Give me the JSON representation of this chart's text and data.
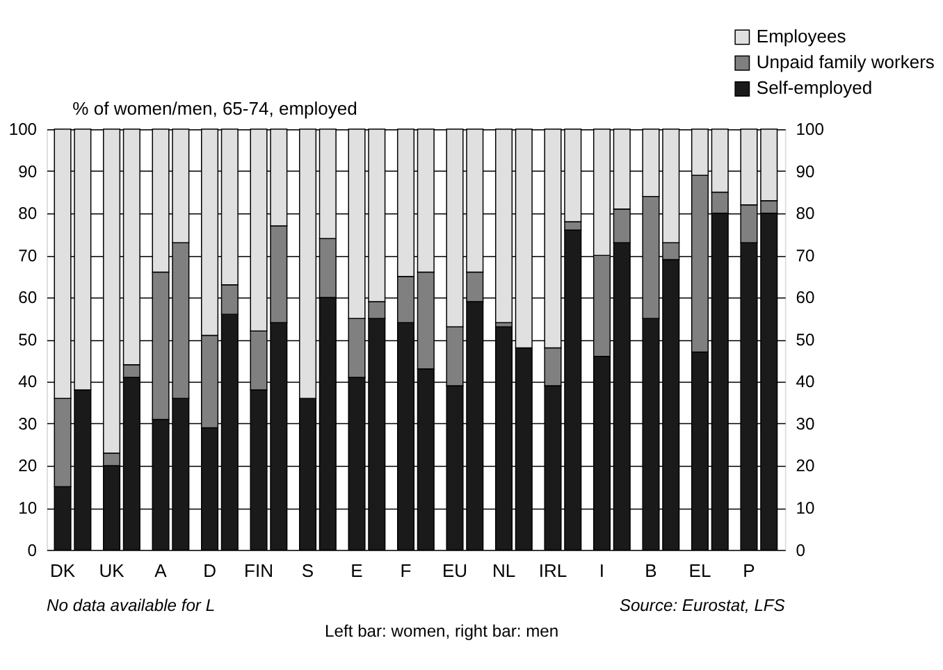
{
  "chart_data": {
    "type": "bar",
    "stacked": true,
    "ylabel": "% of women/men, 65-74, employed",
    "categories": [
      "DK",
      null,
      "UK",
      null,
      "A",
      null,
      "D",
      null,
      "FIN",
      null,
      "S",
      null,
      "E",
      null,
      "F",
      null,
      "EU",
      null,
      "NL",
      null,
      "IRL",
      null,
      "I",
      null,
      "B",
      null,
      "EL",
      null,
      "P",
      null
    ],
    "series": [
      {
        "name": "Self-employed",
        "color": "#1a1a1a",
        "values": [
          15,
          38,
          20,
          41,
          31,
          36,
          29,
          56,
          38,
          54,
          36,
          60,
          41,
          55,
          54,
          43,
          39,
          59,
          53,
          48,
          39,
          76,
          46,
          73,
          55,
          69,
          47,
          80,
          73,
          80
        ]
      },
      {
        "name": "Unpaid family workers",
        "color": "#808080",
        "values": [
          21,
          0,
          3,
          3,
          35,
          37,
          22,
          7,
          14,
          23,
          0,
          14,
          14,
          4,
          11,
          23,
          14,
          7,
          1,
          0,
          9,
          2,
          24,
          8,
          29,
          4,
          42,
          5,
          9,
          3
        ]
      },
      {
        "name": "Employees",
        "color": "#e0e0e0",
        "values": [
          64,
          62,
          77,
          56,
          34,
          27,
          49,
          37,
          48,
          23,
          64,
          26,
          45,
          41,
          35,
          34,
          47,
          34,
          46,
          52,
          52,
          22,
          30,
          19,
          16,
          27,
          11,
          15,
          18,
          17
        ]
      }
    ],
    "ylim": [
      0,
      100
    ],
    "yticks": [
      0,
      10,
      20,
      30,
      40,
      50,
      60,
      70,
      80,
      90,
      100
    ],
    "y2lim": [
      0,
      100
    ],
    "y2ticks": [
      0,
      10,
      20,
      30,
      40,
      50,
      60,
      70,
      80,
      90,
      100
    ],
    "grid": "y",
    "legend": "top right",
    "annotations": [
      "Left bar: women, right bar: men",
      "No data available for L",
      "Source: Eurostat, LFS"
    ]
  }
}
